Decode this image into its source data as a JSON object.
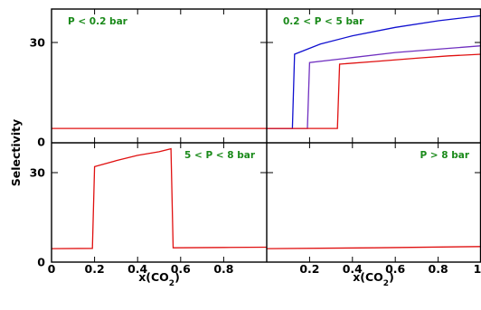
{
  "chart_data": {
    "type": "line",
    "layout": "2x2 panels",
    "ylabel": "Selectivity",
    "xlabel_main": "x(CO",
    "xlabel_sub": "2",
    "xlabel_close": ")",
    "xlim": [
      0,
      1.0
    ],
    "ylim": [
      0,
      40
    ],
    "x_ticks": [
      "0",
      "0.2",
      "0.4",
      "0.6",
      "0.8"
    ],
    "x_ticks_right": [
      "0.2",
      "0.4",
      "0.6",
      "0.8",
      "1"
    ],
    "y_ticks": [
      "0",
      "30"
    ],
    "panel_label_color": "#1a8a1a",
    "panels": [
      {
        "label": "P < 0.2 bar",
        "label_position": "top-left",
        "series": [
          {
            "color": "#e01010",
            "points": [
              [
                0,
                4.3
              ],
              [
                1.0,
                4.3
              ]
            ]
          }
        ]
      },
      {
        "label": "0.2 < P < 5 bar",
        "label_position": "top-left",
        "series": [
          {
            "color": "#1010d0",
            "points": [
              [
                0,
                4.3
              ],
              [
                0.12,
                4.3
              ],
              [
                0.13,
                26.5
              ],
              [
                0.25,
                29.5
              ],
              [
                0.4,
                32.0
              ],
              [
                0.6,
                34.5
              ],
              [
                0.8,
                36.5
              ],
              [
                1.0,
                38.0
              ]
            ]
          },
          {
            "color": "#7030c0",
            "points": [
              [
                0,
                4.3
              ],
              [
                0.19,
                4.3
              ],
              [
                0.2,
                24.0
              ],
              [
                0.4,
                25.5
              ],
              [
                0.6,
                27.0
              ],
              [
                0.8,
                28.0
              ],
              [
                1.0,
                29.0
              ]
            ]
          },
          {
            "color": "#e01010",
            "points": [
              [
                0,
                4.3
              ],
              [
                0.33,
                4.3
              ],
              [
                0.34,
                23.5
              ],
              [
                0.5,
                24.3
              ],
              [
                0.7,
                25.3
              ],
              [
                0.85,
                26.0
              ],
              [
                1.0,
                26.5
              ]
            ]
          }
        ]
      },
      {
        "label": "5 < P < 8 bar",
        "label_position": "top-right",
        "series": [
          {
            "color": "#e01010",
            "points": [
              [
                0,
                4.5
              ],
              [
                0.19,
                4.6
              ],
              [
                0.2,
                32.0
              ],
              [
                0.3,
                34.0
              ],
              [
                0.4,
                35.8
              ],
              [
                0.5,
                37.0
              ],
              [
                0.555,
                38.0
              ],
              [
                0.565,
                4.8
              ],
              [
                0.8,
                4.9
              ],
              [
                1.0,
                5.0
              ]
            ]
          }
        ]
      },
      {
        "label": "P > 8 bar",
        "label_position": "top-right",
        "series": [
          {
            "color": "#e01010",
            "points": [
              [
                0,
                4.5
              ],
              [
                0.5,
                4.8
              ],
              [
                1.0,
                5.2
              ]
            ]
          }
        ]
      }
    ]
  }
}
